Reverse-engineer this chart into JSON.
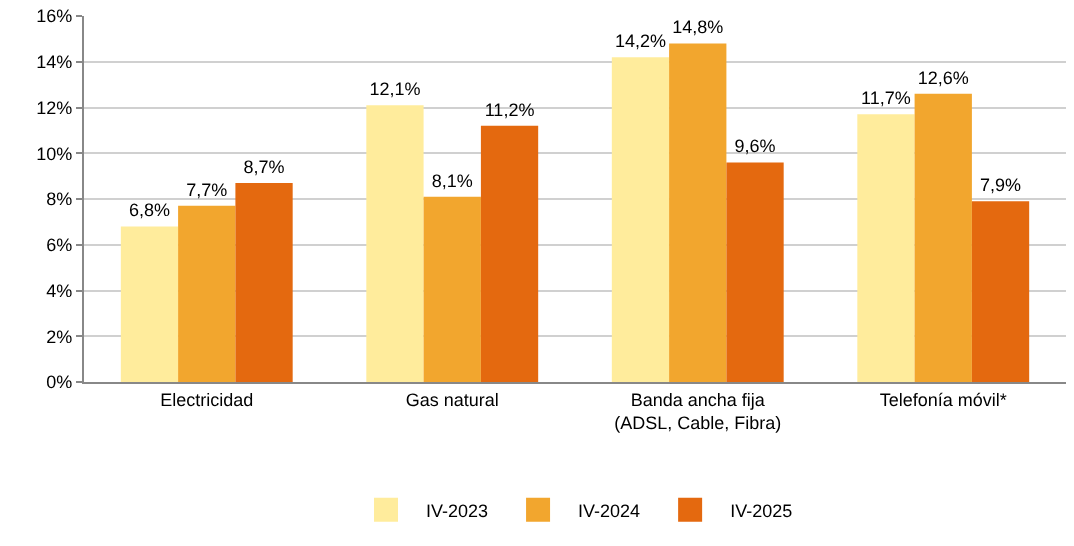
{
  "chart_data": {
    "type": "bar",
    "categories": [
      "Electricidad",
      "Gas natural",
      "Banda ancha fija (ADSL, Cable, Fibra)",
      "Telefonía móvil*"
    ],
    "series": [
      {
        "name": "IV-2023",
        "color": "#ffec9c",
        "values": [
          6.8,
          12.1,
          14.2,
          11.7
        ],
        "value_labels": [
          "6,8%",
          "12,1%",
          "14,2%",
          "11,7%"
        ]
      },
      {
        "name": "IV-2024",
        "color": "#f2a62e",
        "values": [
          7.7,
          8.1,
          14.8,
          12.6
        ],
        "value_labels": [
          "7,7%",
          "8,1%",
          "14,8%",
          "12,6%"
        ]
      },
      {
        "name": "IV-2025",
        "color": "#e4690f",
        "values": [
          8.7,
          11.2,
          9.6,
          7.9
        ],
        "value_labels": [
          "8,7%",
          "11,2%",
          "9,6%",
          "7,9%"
        ]
      }
    ],
    "ylim": [
      0,
      16
    ],
    "yticks": [
      {
        "value": 0,
        "label": "0%"
      },
      {
        "value": 2,
        "label": "2%"
      },
      {
        "value": 4,
        "label": "4%"
      },
      {
        "value": 6,
        "label": "6%"
      },
      {
        "value": 8,
        "label": "8%"
      },
      {
        "value": 10,
        "label": "10%"
      },
      {
        "value": 12,
        "label": "12%"
      },
      {
        "value": 14,
        "label": "14%"
      },
      {
        "value": 16,
        "label": "16%"
      }
    ],
    "grid": "y",
    "legend": "bottom"
  }
}
